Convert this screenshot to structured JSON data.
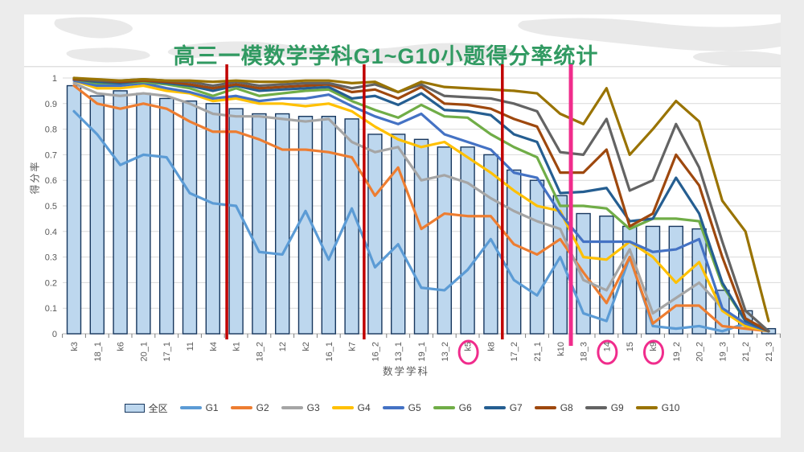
{
  "slide": {
    "title": "高三一模数学学科G1~G10小题得分率统计",
    "title_color": "#319A62"
  },
  "chart_data": {
    "type": "bar+line",
    "title": "高三一模数学学科G1~G10小题得分率统计",
    "xlabel": "数学学科",
    "ylabel": "得分率",
    "ylim": [
      0,
      1
    ],
    "grid": true,
    "legend_position": "bottom",
    "y_tick_labels": [
      "1",
      "0.9",
      "0.8",
      "0.7",
      "0.6",
      "0.5",
      "0.4",
      "0.3",
      "0.2",
      "0.1",
      "0"
    ],
    "categories": [
      "k3",
      "18_1",
      "k6",
      "20_1",
      "17_1",
      "11",
      "k4",
      "k1",
      "18_2",
      "12",
      "k2",
      "16_1",
      "k7",
      "16_2",
      "13_1",
      "19_1",
      "13_2",
      "k5",
      "k8",
      "17_2",
      "21_1",
      "k10",
      "18_3",
      "14",
      "15",
      "k9",
      "19_2",
      "20_2",
      "19_3",
      "21_2",
      "21_3"
    ],
    "bar_series": {
      "name": "全区",
      "fill": "#BDD7EE",
      "border": "#17375E",
      "values": [
        0.97,
        0.93,
        0.95,
        0.94,
        0.92,
        0.91,
        0.9,
        0.88,
        0.86,
        0.86,
        0.85,
        0.85,
        0.84,
        0.78,
        0.78,
        0.76,
        0.73,
        0.73,
        0.7,
        0.64,
        0.6,
        0.54,
        0.47,
        0.46,
        0.42,
        0.42,
        0.42,
        0.41,
        0.17,
        0.09,
        0.02
      ]
    },
    "line_series": [
      {
        "name": "G1",
        "color": "#5B9BD5",
        "values": [
          0.87,
          0.78,
          0.66,
          0.7,
          0.69,
          0.55,
          0.51,
          0.5,
          0.32,
          0.31,
          0.48,
          0.29,
          0.49,
          0.26,
          0.35,
          0.18,
          0.17,
          0.25,
          0.37,
          0.21,
          0.15,
          0.3,
          0.08,
          0.05,
          0.3,
          0.03,
          0.02,
          0.03,
          0.01,
          0.04,
          0.01
        ]
      },
      {
        "name": "G2",
        "color": "#ED7D31",
        "values": [
          0.97,
          0.9,
          0.88,
          0.9,
          0.88,
          0.83,
          0.79,
          0.79,
          0.76,
          0.72,
          0.72,
          0.71,
          0.69,
          0.54,
          0.65,
          0.41,
          0.47,
          0.46,
          0.46,
          0.35,
          0.31,
          0.37,
          0.24,
          0.12,
          0.3,
          0.04,
          0.11,
          0.11,
          0.03,
          0.02,
          0.01
        ]
      },
      {
        "name": "G3",
        "color": "#A5A5A5",
        "values": [
          0.98,
          0.94,
          0.93,
          0.94,
          0.93,
          0.9,
          0.86,
          0.85,
          0.85,
          0.84,
          0.83,
          0.84,
          0.75,
          0.71,
          0.73,
          0.6,
          0.62,
          0.59,
          0.53,
          0.48,
          0.44,
          0.41,
          0.21,
          0.17,
          0.33,
          0.08,
          0.14,
          0.2,
          0.1,
          0.03,
          0.01
        ]
      },
      {
        "name": "G4",
        "color": "#FFC000",
        "values": [
          0.99,
          0.96,
          0.96,
          0.97,
          0.95,
          0.94,
          0.91,
          0.92,
          0.9,
          0.9,
          0.89,
          0.9,
          0.87,
          0.81,
          0.76,
          0.73,
          0.75,
          0.69,
          0.63,
          0.56,
          0.5,
          0.48,
          0.3,
          0.29,
          0.36,
          0.3,
          0.2,
          0.28,
          0.09,
          0.03,
          0.01
        ]
      },
      {
        "name": "G5",
        "color": "#4472C4",
        "values": [
          0.99,
          0.97,
          0.97,
          0.98,
          0.96,
          0.945,
          0.92,
          0.93,
          0.91,
          0.92,
          0.92,
          0.935,
          0.89,
          0.85,
          0.82,
          0.86,
          0.78,
          0.75,
          0.72,
          0.63,
          0.61,
          0.47,
          0.36,
          0.36,
          0.36,
          0.32,
          0.33,
          0.37,
          0.1,
          0.04,
          0.01
        ]
      },
      {
        "name": "G6",
        "color": "#70AD47",
        "values": [
          0.995,
          0.98,
          0.98,
          0.985,
          0.975,
          0.96,
          0.93,
          0.96,
          0.93,
          0.94,
          0.95,
          0.955,
          0.91,
          0.875,
          0.845,
          0.895,
          0.85,
          0.845,
          0.78,
          0.73,
          0.69,
          0.5,
          0.5,
          0.49,
          0.41,
          0.45,
          0.45,
          0.44,
          0.19,
          0.05,
          0.01
        ]
      },
      {
        "name": "G7",
        "color": "#255E91",
        "values": [
          0.995,
          0.985,
          0.98,
          0.99,
          0.98,
          0.97,
          0.95,
          0.97,
          0.95,
          0.955,
          0.96,
          0.965,
          0.92,
          0.93,
          0.895,
          0.94,
          0.875,
          0.87,
          0.855,
          0.78,
          0.75,
          0.55,
          0.555,
          0.57,
          0.44,
          0.45,
          0.61,
          0.47,
          0.2,
          0.05,
          0.01
        ]
      },
      {
        "name": "G8",
        "color": "#9E480E",
        "values": [
          0.995,
          0.99,
          0.985,
          0.99,
          0.985,
          0.975,
          0.96,
          0.975,
          0.96,
          0.965,
          0.97,
          0.975,
          0.945,
          0.955,
          0.92,
          0.965,
          0.9,
          0.895,
          0.88,
          0.84,
          0.81,
          0.63,
          0.63,
          0.72,
          0.42,
          0.47,
          0.7,
          0.58,
          0.3,
          0.06,
          0.01
        ]
      },
      {
        "name": "G9",
        "color": "#636363",
        "values": [
          1.0,
          0.99,
          0.99,
          0.995,
          0.99,
          0.985,
          0.97,
          0.985,
          0.97,
          0.975,
          0.98,
          0.98,
          0.96,
          0.975,
          0.945,
          0.975,
          0.93,
          0.925,
          0.92,
          0.9,
          0.87,
          0.71,
          0.7,
          0.84,
          0.56,
          0.6,
          0.82,
          0.65,
          0.36,
          0.09,
          0.01
        ]
      },
      {
        "name": "G10",
        "color": "#997300",
        "values": [
          1.0,
          0.995,
          0.99,
          0.995,
          0.99,
          0.99,
          0.985,
          0.99,
          0.985,
          0.985,
          0.99,
          0.99,
          0.98,
          0.985,
          0.945,
          0.985,
          0.965,
          0.96,
          0.955,
          0.95,
          0.94,
          0.86,
          0.82,
          0.96,
          0.7,
          0.8,
          0.91,
          0.83,
          0.52,
          0.4,
          0.05
        ]
      }
    ],
    "annotations": {
      "vertical_lines": [
        {
          "between": "k4|k1",
          "position": 6.6,
          "color": "#C00000",
          "width": 3.5
        },
        {
          "between": "k7|16_2",
          "position": 12.53,
          "color": "#C00000",
          "width": 3.5
        },
        {
          "between": "k8|17_2",
          "position": 18.5,
          "color": "#C00000",
          "width": 3.5
        },
        {
          "between": "k10|18_3",
          "position": 21.46,
          "color": "#F02C8C",
          "width": 5
        }
      ],
      "circled_categories": [
        "k5",
        "14",
        "k9"
      ],
      "circle_color": "#F02C8C"
    }
  }
}
